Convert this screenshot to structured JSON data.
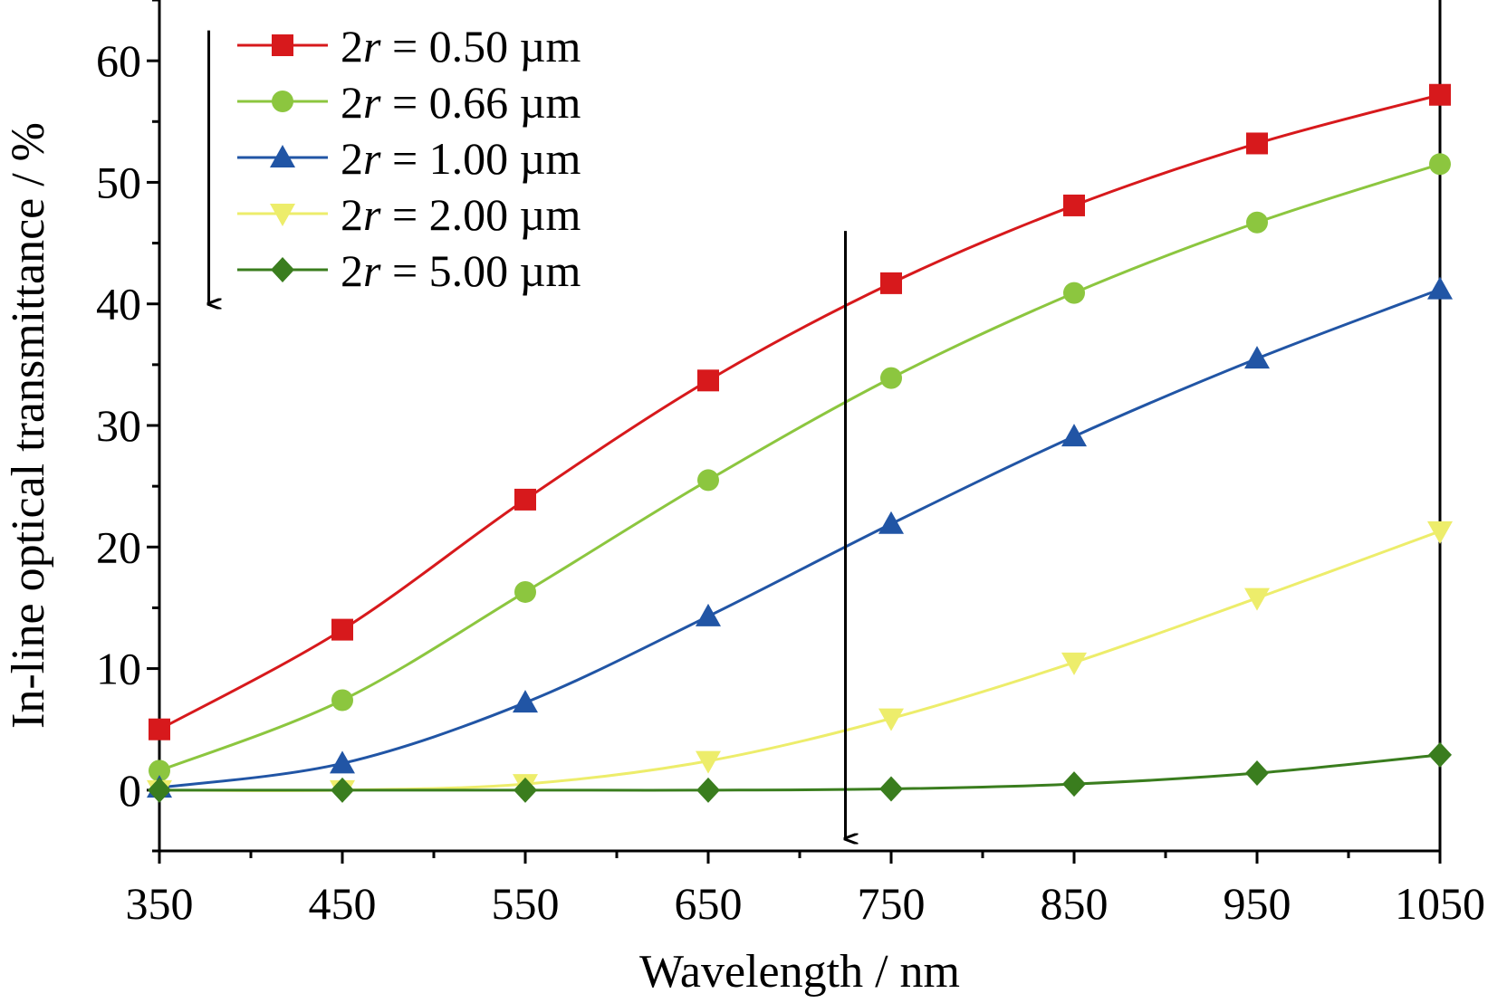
{
  "chart_data": {
    "type": "line",
    "xlabel": "Wavelength / nm",
    "ylabel": "In-line optical transmittance / %",
    "xlim": [
      350,
      1050
    ],
    "ylim": [
      -5,
      65
    ],
    "xticks": [
      350,
      450,
      550,
      650,
      750,
      850,
      950,
      1050
    ],
    "yticks": [
      0,
      10,
      20,
      30,
      40,
      50,
      60
    ],
    "x": [
      350,
      450,
      550,
      650,
      750,
      850,
      950,
      1050
    ],
    "legend_position": "top-left",
    "legend_prefix": "2",
    "legend_var": "r",
    "series": [
      {
        "name": "2r = 0.50 µm",
        "label_value": " = 0.50 µm",
        "color": "#d7191c",
        "marker": "square",
        "values": [
          5.0,
          13.2,
          23.9,
          33.7,
          41.7,
          48.1,
          53.2,
          57.2
        ]
      },
      {
        "name": "2r = 0.66 µm",
        "label_value": " = 0.66 µm",
        "color": "#8cc63f",
        "marker": "circle",
        "values": [
          1.6,
          7.4,
          16.3,
          25.5,
          33.9,
          40.9,
          46.7,
          51.5
        ]
      },
      {
        "name": "2r = 1.00 µm",
        "label_value": " = 1.00 µm",
        "color": "#2155a5",
        "marker": "triangle-up",
        "values": [
          0.2,
          2.2,
          7.2,
          14.3,
          21.9,
          29.1,
          35.5,
          41.2
        ]
      },
      {
        "name": "2r = 2.00 µm",
        "label_value": " = 2.00 µm",
        "color": "#eded6b",
        "marker": "triangle-down",
        "values": [
          0.0,
          0.0,
          0.5,
          2.4,
          5.9,
          10.5,
          15.8,
          21.3
        ]
      },
      {
        "name": "2r = 5.00 µm",
        "label_value": " = 5.00 µm",
        "color": "#3a7d1e",
        "marker": "diamond",
        "values": [
          0.0,
          0.0,
          0.0,
          0.0,
          0.1,
          0.5,
          1.4,
          2.9
        ]
      }
    ],
    "annotations": [
      {
        "type": "arrow",
        "direction": "down",
        "meaning": "increasing particle size",
        "x_data": 725,
        "y_from": 46,
        "y_to": -4
      },
      {
        "type": "arrow",
        "direction": "down",
        "meaning": "legend order",
        "x_data": 377,
        "y_from": 62.5,
        "y_to": 40
      }
    ]
  }
}
